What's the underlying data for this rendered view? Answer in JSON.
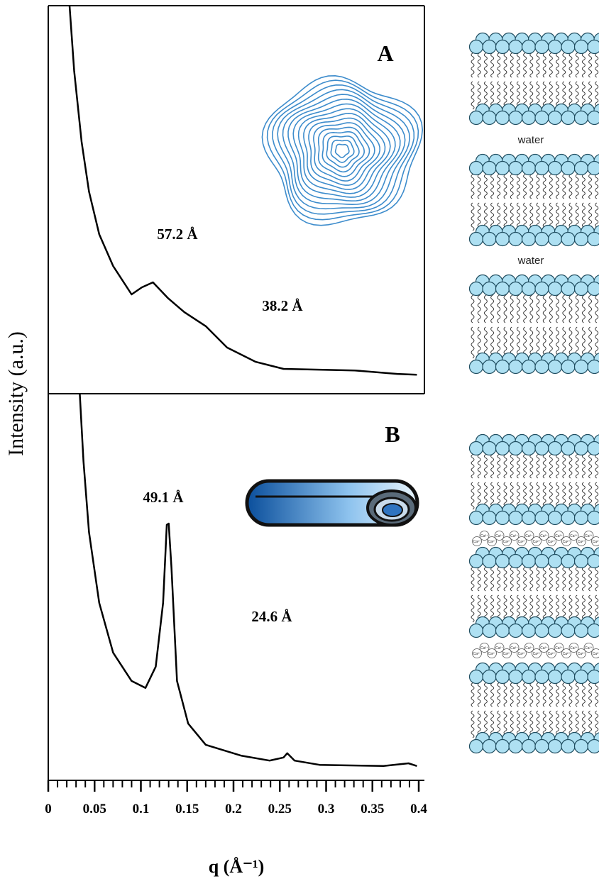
{
  "chart_data": {
    "type": "line",
    "y_label": "Intensity (a.u.)",
    "x_label": "q (Å⁻¹)",
    "xlim": [
      0,
      0.4
    ],
    "xticks": [
      0,
      0.05,
      0.1,
      0.15,
      0.2,
      0.25,
      0.3,
      0.35,
      0.4
    ],
    "xminor_ticks": [
      0,
      0.01,
      0.02,
      0.03,
      0.04,
      0.05,
      0.06,
      0.07,
      0.08,
      0.09,
      0.1,
      0.11,
      0.12,
      0.13,
      0.14,
      0.15,
      0.16,
      0.17,
      0.18,
      0.19,
      0.2,
      0.21,
      0.22,
      0.23,
      0.24,
      0.25,
      0.26,
      0.27,
      0.28,
      0.29,
      0.3,
      0.31,
      0.32,
      0.33,
      0.34,
      0.35,
      0.36,
      0.37,
      0.38,
      0.39,
      0.4
    ],
    "color": "#000000",
    "panels": [
      {
        "label": "A",
        "ylim": [
          0,
          100
        ],
        "x": [
          0.023,
          0.028,
          0.036,
          0.044,
          0.055,
          0.07,
          0.09,
          0.101,
          0.113,
          0.129,
          0.147,
          0.17,
          0.193,
          0.224,
          0.254,
          0.331,
          0.377,
          0.398
        ],
        "values": [
          100,
          83.2,
          64.9,
          52.1,
          41.1,
          32.9,
          25.6,
          27.4,
          28.7,
          24.7,
          21.0,
          17.4,
          11.9,
          8.2,
          6.4,
          6.0,
          5.1,
          4.9
        ],
        "annotations": [
          "57.2 Å",
          "38.2 Å"
        ]
      },
      {
        "label": "B",
        "ylim": [
          0,
          100
        ],
        "x": [
          0.034,
          0.038,
          0.044,
          0.055,
          0.07,
          0.09,
          0.105,
          0.116,
          0.124,
          0.128,
          0.13,
          0.133,
          0.139,
          0.151,
          0.17,
          0.208,
          0.239,
          0.254,
          0.258,
          0.266,
          0.293,
          0.362,
          0.389,
          0.398
        ],
        "values": [
          100,
          82.6,
          64.2,
          45.9,
          33.0,
          25.7,
          23.9,
          29.4,
          45.9,
          66.1,
          66.4,
          55.0,
          25.7,
          14.7,
          9.2,
          6.4,
          5.1,
          5.9,
          7.0,
          5.1,
          4.0,
          3.7,
          4.4,
          3.7
        ],
        "annotations": [
          "49.1 Å",
          "24.6 Å"
        ]
      }
    ]
  },
  "illustration": {
    "spacer_labels": [
      "water",
      "water"
    ],
    "ion_label": "Ca²⁺"
  }
}
